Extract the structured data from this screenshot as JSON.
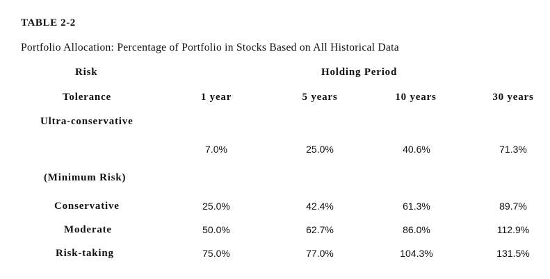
{
  "table": {
    "number": "TABLE 2-2",
    "title": "Portfolio Allocation: Percentage of Portfolio in Stocks Based on All Historical Data",
    "header": {
      "risk_line1": "Risk",
      "risk_line2": "Tolerance",
      "group_label": "Holding Period",
      "periods": [
        "1 year",
        "5 years",
        "10 years",
        "30 years"
      ]
    },
    "rows": [
      {
        "label_line1": "Ultra-conservative",
        "label_line2": "(Minimum Risk)",
        "values": [
          "7.0%",
          "25.0%",
          "40.6%",
          "71.3%"
        ]
      },
      {
        "label": "Conservative",
        "values": [
          "25.0%",
          "42.4%",
          "61.3%",
          "89.7%"
        ]
      },
      {
        "label": "Moderate",
        "values": [
          "50.0%",
          "62.7%",
          "86.0%",
          "112.9%"
        ]
      },
      {
        "label": "Risk-taking",
        "values": [
          "75.0%",
          "77.0%",
          "104.3%",
          "131.5%"
        ]
      }
    ]
  }
}
